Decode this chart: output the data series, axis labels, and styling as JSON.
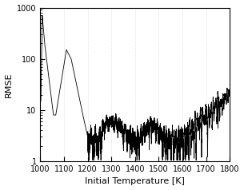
{
  "title": "",
  "xlabel": "Initial Temperature [K]",
  "ylabel": "RMSE",
  "xlim": [
    1000,
    1800
  ],
  "ylim": [
    1,
    1000
  ],
  "x_ticks": [
    1000,
    1100,
    1200,
    1300,
    1400,
    1500,
    1600,
    1700,
    1800
  ],
  "y_ticks": [
    1,
    10,
    100,
    1000
  ],
  "grid_color": "#cccccc",
  "line_color": "#000000",
  "line_width": 0.6,
  "background_color": "#ffffff",
  "figsize": [
    3.05,
    2.38
  ],
  "dpi": 100
}
